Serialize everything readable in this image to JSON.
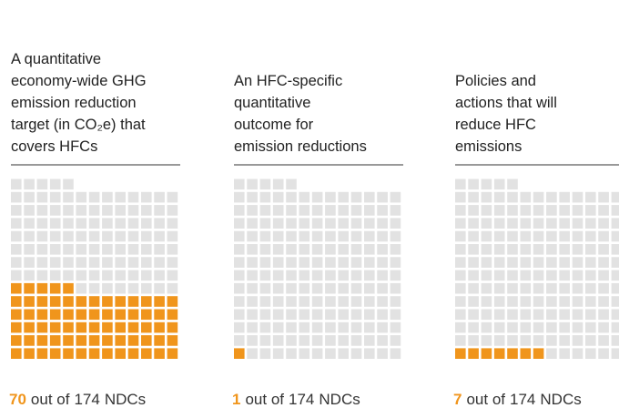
{
  "panels": [
    {
      "title": [
        "A quantitative",
        "economy-wide GHG",
        "emission reduction",
        "target (in CO₂e) that",
        "covers HFCs"
      ],
      "count": 70,
      "pre": "out of",
      "total": 174,
      "post": "NDCs"
    },
    {
      "title": [
        "An HFC-specific",
        "quantitative",
        "outcome for",
        "emission reductions"
      ],
      "count": 1,
      "pre": "out of",
      "total": 174,
      "post": "NDCs"
    },
    {
      "title": [
        "Policies and",
        "actions that will",
        "reduce HFC",
        "emissions"
      ],
      "count": 7,
      "pre": "out of",
      "total": 174,
      "post": "NDCs"
    }
  ],
  "highlight_color": "#f0951c",
  "base_color": "#e2e2e2"
}
